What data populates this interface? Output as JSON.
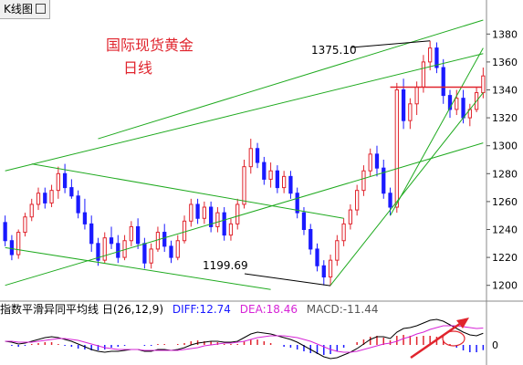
{
  "window": {
    "tab_title": "K线图"
  },
  "annotations": {
    "title": "国际现货黄金",
    "subtitle": "日线",
    "high_label": "1375.10",
    "low_label": "1199.69"
  },
  "macd_header": {
    "name": "指数平滑异同平均线",
    "period": "日",
    "params": "(26,12,9)",
    "diff_label": "DIFF:12.74",
    "dea_label": "DEA:18.46",
    "macd_label": "MACD:-11.44"
  },
  "colors": {
    "up": "#e0242d",
    "down": "#1a1aff",
    "trend_line": "#1faa1f",
    "resistance": "#e0242d",
    "diff_line": "#000000",
    "dea_line": "#d623d6",
    "arrow": "#e0242d"
  },
  "chart_data": {
    "type": "candlestick",
    "title": "国际现货黄金",
    "subtitle": "日线",
    "ylim": [
      1190,
      1390
    ],
    "yticks": [
      1200,
      1220,
      1240,
      1260,
      1280,
      1300,
      1320,
      1340,
      1360,
      1380
    ],
    "ytick_labels": [
      "1200",
      "1220",
      "1240",
      "1260",
      "1280",
      "1300",
      "1320",
      "1340",
      "1360",
      "1380"
    ],
    "ohlc": [
      [
        1245,
        1250,
        1228,
        1232
      ],
      [
        1232,
        1236,
        1218,
        1222
      ],
      [
        1222,
        1240,
        1219,
        1238
      ],
      [
        1238,
        1252,
        1235,
        1249
      ],
      [
        1249,
        1262,
        1246,
        1258
      ],
      [
        1258,
        1270,
        1254,
        1266
      ],
      [
        1266,
        1270,
        1255,
        1259
      ],
      [
        1259,
        1272,
        1256,
        1268
      ],
      [
        1268,
        1285,
        1262,
        1280
      ],
      [
        1280,
        1287,
        1266,
        1270
      ],
      [
        1270,
        1276,
        1262,
        1264
      ],
      [
        1264,
        1268,
        1248,
        1252
      ],
      [
        1252,
        1262,
        1240,
        1244
      ],
      [
        1244,
        1250,
        1224,
        1230
      ],
      [
        1230,
        1234,
        1214,
        1218
      ],
      [
        1218,
        1238,
        1216,
        1234
      ],
      [
        1234,
        1242,
        1226,
        1230
      ],
      [
        1230,
        1236,
        1216,
        1220
      ],
      [
        1220,
        1236,
        1218,
        1232
      ],
      [
        1232,
        1246,
        1228,
        1242
      ],
      [
        1242,
        1248,
        1226,
        1230
      ],
      [
        1230,
        1234,
        1212,
        1216
      ],
      [
        1216,
        1230,
        1212,
        1226
      ],
      [
        1226,
        1242,
        1224,
        1238
      ],
      [
        1238,
        1244,
        1224,
        1228
      ],
      [
        1228,
        1232,
        1216,
        1220
      ],
      [
        1220,
        1236,
        1218,
        1232
      ],
      [
        1232,
        1250,
        1230,
        1246
      ],
      [
        1246,
        1262,
        1242,
        1258
      ],
      [
        1258,
        1262,
        1244,
        1248
      ],
      [
        1248,
        1260,
        1244,
        1256
      ],
      [
        1256,
        1260,
        1238,
        1242
      ],
      [
        1242,
        1256,
        1238,
        1252
      ],
      [
        1252,
        1256,
        1232,
        1236
      ],
      [
        1236,
        1248,
        1232,
        1244
      ],
      [
        1244,
        1262,
        1240,
        1258
      ],
      [
        1258,
        1290,
        1255,
        1285
      ],
      [
        1285,
        1305,
        1280,
        1298
      ],
      [
        1298,
        1302,
        1284,
        1288
      ],
      [
        1288,
        1292,
        1272,
        1276
      ],
      [
        1276,
        1288,
        1270,
        1282
      ],
      [
        1282,
        1286,
        1266,
        1270
      ],
      [
        1270,
        1282,
        1266,
        1278
      ],
      [
        1278,
        1282,
        1262,
        1266
      ],
      [
        1266,
        1270,
        1248,
        1252
      ],
      [
        1252,
        1256,
        1236,
        1240
      ],
      [
        1240,
        1244,
        1222,
        1226
      ],
      [
        1226,
        1230,
        1210,
        1214
      ],
      [
        1214,
        1218,
        1200,
        1206
      ],
      [
        1206,
        1222,
        1199.69,
        1218
      ],
      [
        1218,
        1236,
        1214,
        1232
      ],
      [
        1232,
        1248,
        1228,
        1244
      ],
      [
        1244,
        1258,
        1240,
        1254
      ],
      [
        1254,
        1272,
        1250,
        1268
      ],
      [
        1268,
        1286,
        1264,
        1282
      ],
      [
        1282,
        1298,
        1278,
        1294
      ],
      [
        1294,
        1300,
        1278,
        1284
      ],
      [
        1284,
        1290,
        1262,
        1266
      ],
      [
        1266,
        1270,
        1250,
        1256
      ],
      [
        1256,
        1345,
        1252,
        1340
      ],
      [
        1340,
        1348,
        1312,
        1318
      ],
      [
        1318,
        1334,
        1312,
        1330
      ],
      [
        1330,
        1346,
        1322,
        1342
      ],
      [
        1342,
        1365,
        1338,
        1360
      ],
      [
        1360,
        1375.1,
        1354,
        1370
      ],
      [
        1370,
        1374,
        1352,
        1356
      ],
      [
        1356,
        1362,
        1330,
        1336
      ],
      [
        1336,
        1340,
        1320,
        1326
      ],
      [
        1326,
        1340,
        1322,
        1334
      ],
      [
        1334,
        1340,
        1316,
        1320
      ],
      [
        1320,
        1330,
        1314,
        1326
      ],
      [
        1326,
        1342,
        1324,
        1338
      ],
      [
        1338,
        1356,
        1334,
        1350
      ]
    ],
    "trendlines": [
      {
        "name": "upper-channel-top",
        "points": [
          [
            14,
            1305
          ],
          [
            72,
            1390
          ]
        ]
      },
      {
        "name": "mid-rising-line",
        "points": [
          [
            0,
            1282
          ],
          [
            72,
            1366
          ]
        ]
      },
      {
        "name": "lower-rising-line",
        "points": [
          [
            0,
            1200
          ],
          [
            72,
            1302
          ]
        ]
      },
      {
        "name": "falling-channel-top",
        "points": [
          [
            4,
            1287
          ],
          [
            51,
            1248
          ]
        ]
      },
      {
        "name": "falling-channel-bottom",
        "points": [
          [
            0,
            1227
          ],
          [
            40,
            1197
          ]
        ]
      },
      {
        "name": "recent-support-line",
        "points": [
          [
            49,
            1200
          ],
          [
            72,
            1338
          ]
        ]
      },
      {
        "name": "recent-support-line-2",
        "points": [
          [
            58,
            1250
          ],
          [
            72,
            1370
          ]
        ]
      }
    ],
    "resistance_level": 1342,
    "macd": {
      "diff": [
        4,
        3,
        1,
        2,
        4,
        6,
        8,
        9,
        8,
        6,
        4,
        1,
        -2,
        -5,
        -7,
        -8,
        -7,
        -7,
        -6,
        -5,
        -5,
        -7,
        -7,
        -5,
        -5,
        -6,
        -5,
        -3,
        0,
        2,
        3,
        4,
        4,
        3,
        3,
        4,
        8,
        12,
        14,
        13,
        12,
        10,
        8,
        6,
        3,
        -1,
        -5,
        -9,
        -13,
        -15,
        -14,
        -11,
        -8,
        -4,
        1,
        6,
        9,
        9,
        7,
        14,
        18,
        19,
        21,
        24,
        27,
        28,
        26,
        22,
        18,
        14,
        11,
        10,
        12.74
      ],
      "dea": [
        4,
        4,
        3,
        3,
        3,
        4,
        5,
        6,
        7,
        7,
        6,
        5,
        3,
        1,
        -1,
        -3,
        -4,
        -5,
        -5,
        -5,
        -5,
        -6,
        -6,
        -6,
        -6,
        -6,
        -6,
        -5,
        -4,
        -3,
        -1,
        0,
        1,
        2,
        2,
        3,
        4,
        6,
        8,
        9,
        10,
        10,
        10,
        9,
        8,
        6,
        4,
        1,
        -2,
        -5,
        -7,
        -8,
        -8,
        -7,
        -5,
        -3,
        -1,
        1,
        2,
        4,
        7,
        9,
        12,
        14,
        17,
        19,
        21,
        21,
        21,
        20,
        19,
        18,
        18.46
      ]
    }
  }
}
